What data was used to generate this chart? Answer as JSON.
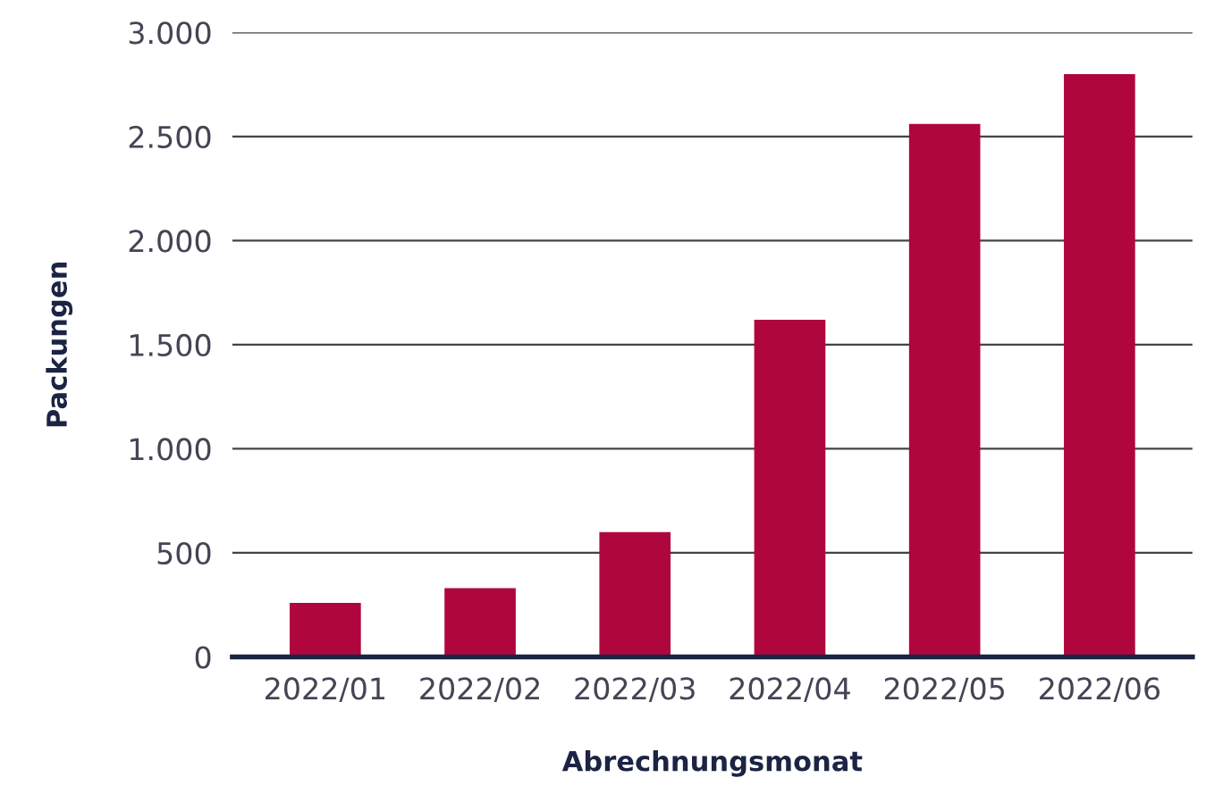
{
  "chart_data": {
    "type": "bar",
    "xlabel": "Abrechnungsmonat",
    "ylabel": "Packungen",
    "categories": [
      "2022/01",
      "2022/02",
      "2022/03",
      "2022/04",
      "2022/05",
      "2022/06"
    ],
    "values": [
      260,
      330,
      600,
      1620,
      2560,
      2800
    ],
    "color": "#b0063e",
    "ylim": [
      0,
      3000
    ],
    "yticks": [
      {
        "value": 0,
        "label": "0"
      },
      {
        "value": 500,
        "label": "500"
      },
      {
        "value": 1000,
        "label": "1.000"
      },
      {
        "value": 1500,
        "label": "1.500"
      },
      {
        "value": 2000,
        "label": "2.000"
      },
      {
        "value": 2500,
        "label": "2.500"
      },
      {
        "value": 3000,
        "label": "3.000"
      }
    ],
    "grid": "y",
    "legend": false
  }
}
